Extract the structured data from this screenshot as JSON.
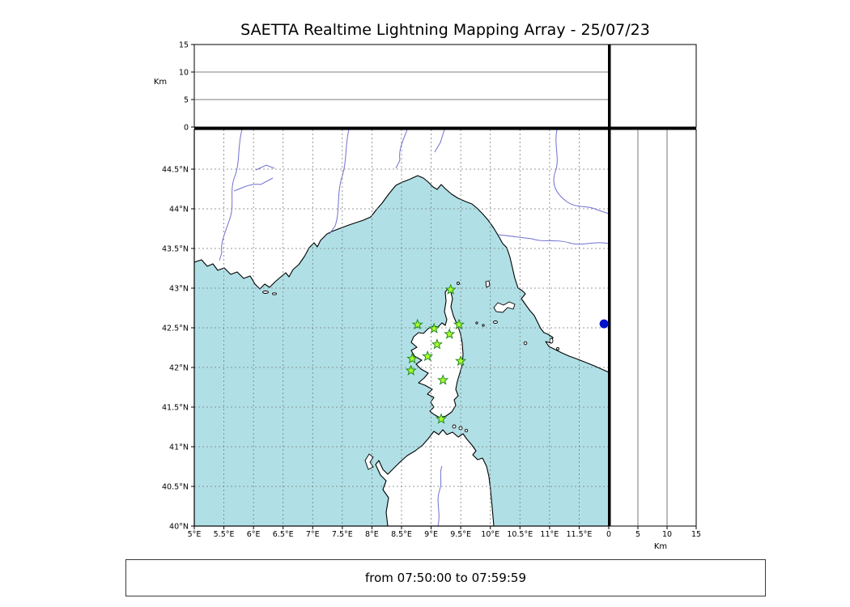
{
  "title": "SAETTA Realtime Lightning Mapping Array - 25/07/23",
  "footer": {
    "text": "from 07:50:00 to 07:59:59"
  },
  "axes": {
    "top_km_label": "Km",
    "right_km_label": "Km"
  },
  "colors": {
    "sea": "#b0e0e6",
    "land": "#ffffff",
    "coastline": "#000000",
    "grid": "#7a7a7a",
    "panel_grid": "#555555",
    "river": "#7070d0",
    "station_fill": "#adff2f",
    "station_edge": "#1f8c1f",
    "event_dot": "#0011cc"
  },
  "chart_data": {
    "type": "scatter",
    "title": "SAETTA Realtime Lightning Mapping Array - 25/07/23",
    "time_window": "from 07:50:00 to 07:59:59",
    "map_panel": {
      "lon_range": [
        5,
        12.0
      ],
      "lat_range": [
        40,
        45
      ],
      "grid_step_deg": 0.5,
      "grid_style": "dashed",
      "lon_ticks": [
        {
          "v": 5,
          "label": "5°E"
        },
        {
          "v": 5.5,
          "label": "5.5°E"
        },
        {
          "v": 6,
          "label": "6°E"
        },
        {
          "v": 6.5,
          "label": "6.5°E"
        },
        {
          "v": 7,
          "label": "7°E"
        },
        {
          "v": 7.5,
          "label": "7.5°E"
        },
        {
          "v": 8,
          "label": "8°E"
        },
        {
          "v": 8.5,
          "label": "8.5°E"
        },
        {
          "v": 9,
          "label": "9°E"
        },
        {
          "v": 9.5,
          "label": "9.5°E"
        },
        {
          "v": 10,
          "label": "10°E"
        },
        {
          "v": 10.5,
          "label": "10.5°E"
        },
        {
          "v": 11,
          "label": "11°E"
        },
        {
          "v": 11.5,
          "label": "11.5°E"
        }
      ],
      "lat_ticks": [
        {
          "v": 40,
          "label": "40°N"
        },
        {
          "v": 40.5,
          "label": "40.5°N"
        },
        {
          "v": 41,
          "label": "41°N"
        },
        {
          "v": 41.5,
          "label": "41.5°N"
        },
        {
          "v": 42,
          "label": "42°N"
        },
        {
          "v": 42.5,
          "label": "42.5°N"
        },
        {
          "v": 43,
          "label": "43°N"
        },
        {
          "v": 43.5,
          "label": "43.5°N"
        },
        {
          "v": 44,
          "label": "44°N"
        },
        {
          "v": 44.5,
          "label": "44.5°N"
        }
      ]
    },
    "altitude_top_panel": {
      "ylabel": "Km",
      "range": [
        0,
        15
      ],
      "ticks": [
        {
          "v": 0,
          "label": "0"
        },
        {
          "v": 5,
          "label": "5"
        },
        {
          "v": 10,
          "label": "10"
        },
        {
          "v": 15,
          "label": "15"
        }
      ],
      "gridlines": [
        5,
        10
      ],
      "series": []
    },
    "altitude_right_panel": {
      "xlabel": "Km",
      "range": [
        0,
        15
      ],
      "ticks": [
        {
          "v": 0,
          "label": "0"
        },
        {
          "v": 5,
          "label": "5"
        },
        {
          "v": 10,
          "label": "10"
        },
        {
          "v": 15,
          "label": "15"
        }
      ],
      "gridlines": [
        5,
        10
      ],
      "series": []
    },
    "stations": [
      {
        "lon": 9.33,
        "lat": 42.98
      },
      {
        "lon": 8.77,
        "lat": 42.54
      },
      {
        "lon": 9.05,
        "lat": 42.49
      },
      {
        "lon": 9.47,
        "lat": 42.54
      },
      {
        "lon": 9.31,
        "lat": 42.42
      },
      {
        "lon": 9.1,
        "lat": 42.29
      },
      {
        "lon": 8.68,
        "lat": 42.11
      },
      {
        "lon": 8.94,
        "lat": 42.14
      },
      {
        "lon": 9.5,
        "lat": 42.08
      },
      {
        "lon": 8.66,
        "lat": 41.96
      },
      {
        "lon": 9.2,
        "lat": 41.84
      },
      {
        "lon": 9.17,
        "lat": 41.35
      }
    ],
    "markers": [
      {
        "lon": 11.92,
        "lat": 42.55,
        "shape": "circle",
        "color": "#0011cc"
      }
    ],
    "lightning_sources": []
  }
}
